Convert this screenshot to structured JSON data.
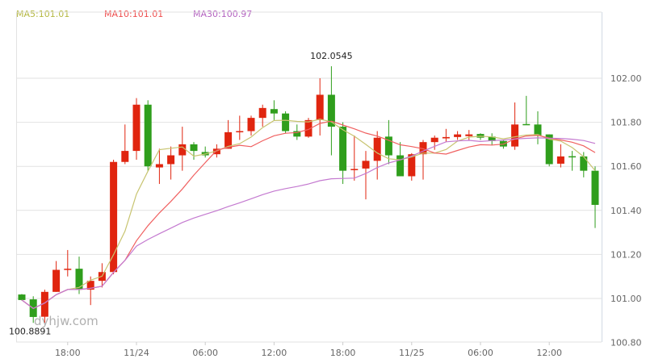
{
  "legend": {
    "ma5": {
      "label": "MA5:101.01",
      "color": "#b5b840"
    },
    "ma10": {
      "label": "MA10:101.01",
      "color": "#ef4d4d"
    },
    "ma30": {
      "label": "MA30:100.97",
      "color": "#b360c0"
    }
  },
  "watermark": "dyhjw.com",
  "chart_data": {
    "type": "candlestick",
    "up_color": "#e0250f",
    "down_color": "#2f9e1c",
    "ylim": [
      100.8,
      102.08
    ],
    "yticks": [
      "100.80",
      "101.00",
      "101.20",
      "101.40",
      "101.60",
      "101.80",
      "102.00"
    ],
    "xticks": [
      {
        "index": 4,
        "label": "18:00"
      },
      {
        "index": 10,
        "label": "11/24"
      },
      {
        "index": 16,
        "label": "06:00"
      },
      {
        "index": 22,
        "label": "12:00"
      },
      {
        "index": 28,
        "label": "18:00"
      },
      {
        "index": 34,
        "label": "11/25"
      },
      {
        "index": 40,
        "label": "06:00"
      },
      {
        "index": 46,
        "label": "12:00"
      }
    ],
    "annotations": [
      {
        "index": 27,
        "price": 102.0545,
        "label": "102.0545",
        "kind": "max"
      },
      {
        "index": 1,
        "price": 100.8891,
        "label": "100.8891",
        "kind": "min"
      }
    ],
    "moving_averages": [
      {
        "name": "MA5",
        "period": 5,
        "color": "#c8c470"
      },
      {
        "name": "MA10",
        "period": 10,
        "color": "#f06060"
      },
      {
        "name": "MA30",
        "period": 30,
        "color": "#c47ad0"
      }
    ],
    "grid": true,
    "ohlc": [
      [
        101.018,
        101.02,
        100.99,
        100.993
      ],
      [
        100.996,
        101.01,
        100.8891,
        100.916
      ],
      [
        100.917,
        101.04,
        100.89,
        101.03
      ],
      [
        101.03,
        101.17,
        101.03,
        101.13
      ],
      [
        101.13,
        101.22,
        101.1,
        101.135
      ],
      [
        101.135,
        101.19,
        101.02,
        101.04
      ],
      [
        101.04,
        101.1,
        100.97,
        101.08
      ],
      [
        101.08,
        101.16,
        101.05,
        101.12
      ],
      [
        101.12,
        101.63,
        101.11,
        101.62
      ],
      [
        101.62,
        101.79,
        101.61,
        101.67
      ],
      [
        101.67,
        101.91,
        101.63,
        101.88
      ],
      [
        101.88,
        101.9,
        101.58,
        101.6
      ],
      [
        101.595,
        101.68,
        101.52,
        101.61
      ],
      [
        101.61,
        101.69,
        101.54,
        101.65
      ],
      [
        101.65,
        101.78,
        101.58,
        101.7
      ],
      [
        101.7,
        101.71,
        101.63,
        101.67
      ],
      [
        101.665,
        101.69,
        101.64,
        101.65
      ],
      [
        101.655,
        101.7,
        101.64,
        101.68
      ],
      [
        101.68,
        101.81,
        101.68,
        101.755
      ],
      [
        101.755,
        101.83,
        101.72,
        101.76
      ],
      [
        101.76,
        101.83,
        101.74,
        101.82
      ],
      [
        101.82,
        101.88,
        101.78,
        101.865
      ],
      [
        101.86,
        101.9,
        101.81,
        101.84
      ],
      [
        101.84,
        101.85,
        101.75,
        101.76
      ],
      [
        101.76,
        101.79,
        101.72,
        101.735
      ],
      [
        101.735,
        101.82,
        101.73,
        101.81
      ],
      [
        101.81,
        102.0,
        101.74,
        101.925
      ],
      [
        101.925,
        102.0545,
        101.65,
        101.78
      ],
      [
        101.78,
        101.8,
        101.52,
        101.58
      ],
      [
        101.583,
        101.74,
        101.535,
        101.588
      ],
      [
        101.59,
        101.67,
        101.45,
        101.625
      ],
      [
        101.625,
        101.76,
        101.54,
        101.73
      ],
      [
        101.735,
        101.81,
        101.61,
        101.65
      ],
      [
        101.65,
        101.71,
        101.555,
        101.555
      ],
      [
        101.555,
        101.66,
        101.535,
        101.655
      ],
      [
        101.655,
        101.72,
        101.54,
        101.71
      ],
      [
        101.71,
        101.74,
        101.675,
        101.73
      ],
      [
        101.727,
        101.77,
        101.71,
        101.733
      ],
      [
        101.733,
        101.76,
        101.72,
        101.745
      ],
      [
        101.737,
        101.765,
        101.72,
        101.745
      ],
      [
        101.747,
        101.75,
        101.72,
        101.73
      ],
      [
        101.735,
        101.75,
        101.695,
        101.715
      ],
      [
        101.715,
        101.72,
        101.68,
        101.69
      ],
      [
        101.69,
        101.89,
        101.675,
        101.79
      ],
      [
        101.792,
        101.92,
        101.788,
        101.788
      ],
      [
        101.79,
        101.85,
        101.7,
        101.74
      ],
      [
        101.745,
        101.745,
        101.6,
        101.61
      ],
      [
        101.612,
        101.7,
        101.595,
        101.645
      ],
      [
        101.646,
        101.67,
        101.58,
        101.643
      ],
      [
        101.645,
        101.665,
        101.55,
        101.58
      ],
      [
        101.58,
        101.6,
        101.32,
        101.425
      ]
    ]
  }
}
